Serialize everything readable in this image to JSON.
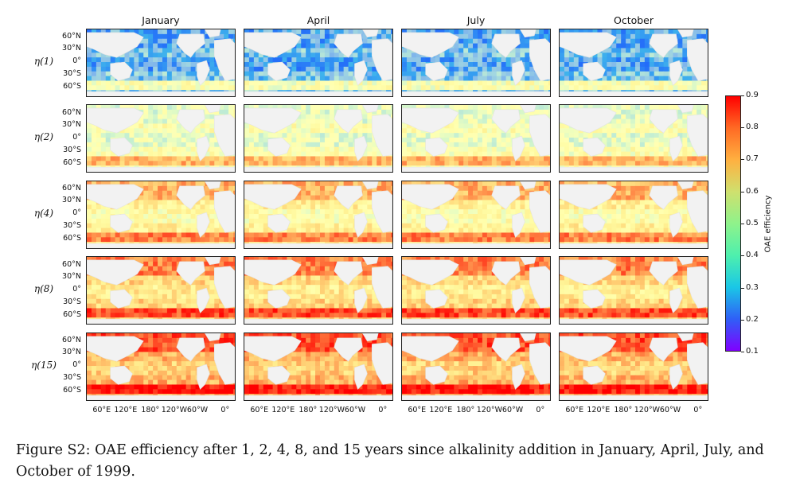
{
  "figure": {
    "months": [
      "January",
      "April",
      "July",
      "October"
    ],
    "rows": [
      {
        "label": "η(1)",
        "years": 1
      },
      {
        "label": "η(2)",
        "years": 2
      },
      {
        "label": "η(4)",
        "years": 4
      },
      {
        "label": "η(8)",
        "years": 8
      },
      {
        "label": "η(15)",
        "years": 15
      }
    ],
    "lat_ticks": [
      "60°N",
      "30°N",
      "0°",
      "30°S",
      "60°S"
    ],
    "lon_ticks": [
      "60°E",
      "120°E",
      "180°",
      "120°W",
      "60°W",
      "0°"
    ],
    "colorbar": {
      "label": "OAE efficiency",
      "min": 0.1,
      "max": 0.9,
      "ticks": [
        "0.9",
        "0.8",
        "0.7",
        "0.6",
        "0.5",
        "0.4",
        "0.3",
        "0.2",
        "0.1"
      ],
      "colormap": "rainbow"
    },
    "colors": {
      "land": "#f2f2f2",
      "land_edge": "#e3e3e3",
      "frame": "#222222"
    }
  },
  "caption": {
    "text": "Figure S2: OAE efficiency after 1, 2, 4, 8, and 15 years since alkalinity addition in January, April, July, and October of 1999."
  }
}
